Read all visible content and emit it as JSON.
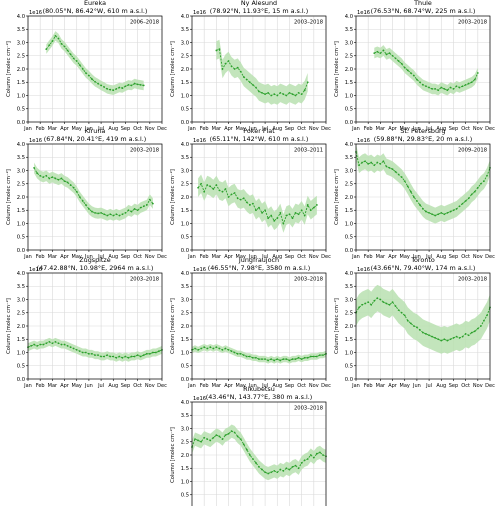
{
  "figure": {
    "ylabel": "Column [molec cm⁻²]",
    "multiplier": "1e16",
    "months": [
      "Jan",
      "Feb",
      "Mar",
      "Apr",
      "May",
      "Jun",
      "Jul",
      "Aug",
      "Sep",
      "Oct",
      "Nov",
      "Dec"
    ],
    "ytick_labels": [
      "0.0",
      "0.5",
      "1.0",
      "1.5",
      "2.0",
      "2.5",
      "3.0",
      "3.5",
      "4.0"
    ],
    "colors": {
      "line": "#2ca02c",
      "band": "#b8e0b0",
      "grid": "#d9d9d9",
      "axes": "#000000"
    }
  },
  "chart_data": [
    {
      "type": "line",
      "title": "Eureka",
      "subtitle": "(80.05°N, 86.42°W, 610 m a.s.l.)",
      "period": "2006–2018",
      "ylim": [
        0,
        4.0
      ],
      "y_multiplier": "1e16",
      "x": [
        2.5,
        2.75,
        3,
        3.25,
        3.5,
        3.75,
        4,
        4.25,
        4.5,
        4.75,
        5,
        5.25,
        5.5,
        5.75,
        6,
        6.25,
        6.5,
        6.75,
        7,
        7.25,
        7.5,
        7.75,
        8,
        8.25,
        8.5,
        8.75,
        9,
        9.25,
        9.5,
        9.75,
        10,
        10.25,
        10.5
      ],
      "y": [
        2.75,
        2.9,
        3.05,
        3.25,
        3.15,
        2.95,
        2.85,
        2.7,
        2.55,
        2.4,
        2.3,
        2.15,
        2.0,
        1.85,
        1.75,
        1.62,
        1.52,
        1.45,
        1.38,
        1.32,
        1.25,
        1.22,
        1.2,
        1.25,
        1.3,
        1.28,
        1.35,
        1.4,
        1.38,
        1.45,
        1.42,
        1.4,
        1.38
      ],
      "spread": 0.18
    },
    {
      "type": "line",
      "title": "Ny Alesund",
      "subtitle": "(78.92°N, 11.93°E, 15 m a.s.l.)",
      "period": "2003–2018",
      "ylim": [
        0,
        4.0
      ],
      "y_multiplier": "1e16",
      "x": [
        3.0,
        3.25,
        3.5,
        3.75,
        4,
        4.25,
        4.5,
        4.75,
        5,
        5.25,
        5.5,
        5.75,
        6,
        6.25,
        6.5,
        6.75,
        7,
        7.25,
        7.5,
        7.75,
        8,
        8.25,
        8.5,
        8.75,
        9,
        9.25,
        9.5,
        9.75,
        10,
        10.25,
        10.5
      ],
      "y": [
        2.7,
        2.75,
        2.0,
        2.2,
        2.3,
        2.1,
        2.0,
        2.05,
        1.9,
        1.7,
        1.6,
        1.5,
        1.4,
        1.3,
        1.15,
        1.1,
        1.05,
        1.1,
        1.0,
        1.05,
        1.0,
        1.1,
        1.05,
        1.0,
        1.1,
        1.05,
        1.0,
        1.1,
        1.05,
        1.2,
        1.5
      ],
      "spread": 0.35
    },
    {
      "type": "line",
      "title": "Thule",
      "subtitle": "(76.53°N, 68.74°W, 225 m a.s.l.)",
      "period": "2003–2018",
      "ylim": [
        0,
        4.0
      ],
      "y_multiplier": "1e16",
      "x": [
        2.5,
        2.75,
        3,
        3.25,
        3.5,
        3.75,
        4,
        4.25,
        4.5,
        4.75,
        5,
        5.25,
        5.5,
        5.75,
        6,
        6.25,
        6.5,
        6.75,
        7,
        7.25,
        7.5,
        7.75,
        8,
        8.25,
        8.5,
        8.75,
        9,
        9.25,
        9.5,
        9.75,
        10,
        10.25,
        10.5,
        10.75,
        11
      ],
      "y": [
        2.6,
        2.65,
        2.6,
        2.7,
        2.55,
        2.6,
        2.5,
        2.4,
        2.3,
        2.2,
        2.05,
        1.95,
        1.85,
        1.75,
        1.6,
        1.5,
        1.4,
        1.35,
        1.3,
        1.25,
        1.25,
        1.2,
        1.3,
        1.25,
        1.2,
        1.3,
        1.25,
        1.35,
        1.3,
        1.35,
        1.4,
        1.45,
        1.5,
        1.6,
        1.85
      ],
      "spread": 0.2
    },
    {
      "type": "line",
      "title": "Kiruna",
      "subtitle": "(67.84°N, 20.41°E, 419 m a.s.l.)",
      "period": "2003–2018",
      "ylim": [
        0,
        4.0
      ],
      "y_multiplier": "1e16",
      "x": [
        1.5,
        1.75,
        2,
        2.25,
        2.5,
        2.75,
        3,
        3.25,
        3.5,
        3.75,
        4,
        4.25,
        4.5,
        4.75,
        5,
        5.25,
        5.5,
        5.75,
        6,
        6.25,
        6.5,
        6.75,
        7,
        7.25,
        7.5,
        7.75,
        8,
        8.25,
        8.5,
        8.75,
        9,
        9.25,
        9.5,
        9.75,
        10,
        10.25,
        10.5,
        10.75,
        11,
        11.25
      ],
      "y": [
        3.1,
        2.9,
        2.8,
        2.75,
        2.8,
        2.7,
        2.75,
        2.7,
        2.65,
        2.7,
        2.6,
        2.55,
        2.45,
        2.35,
        2.2,
        2.0,
        1.85,
        1.7,
        1.55,
        1.45,
        1.4,
        1.38,
        1.4,
        1.35,
        1.3,
        1.35,
        1.3,
        1.35,
        1.3,
        1.35,
        1.4,
        1.5,
        1.45,
        1.55,
        1.5,
        1.6,
        1.65,
        1.7,
        1.9,
        1.75
      ],
      "spread": 0.2
    },
    {
      "type": "line",
      "title": "Poker Flat",
      "subtitle": "(65.11°N, 142°W, 610 m a.s.l.)",
      "period": "2003–2011",
      "ylim": [
        0,
        4.0
      ],
      "y_multiplier": "1e16",
      "x": [
        1.5,
        1.75,
        2,
        2.25,
        2.5,
        2.75,
        3,
        3.25,
        3.5,
        3.75,
        4,
        4.25,
        4.5,
        4.75,
        5,
        5.25,
        5.5,
        5.75,
        6,
        6.25,
        6.5,
        6.75,
        7,
        7.25,
        7.5,
        7.75,
        8,
        8.25,
        8.5,
        8.75,
        9,
        9.25,
        9.5,
        9.75,
        10,
        10.25,
        10.5,
        10.75,
        11,
        11.25
      ],
      "y": [
        2.35,
        2.5,
        2.2,
        2.45,
        2.4,
        2.3,
        2.45,
        2.25,
        2.2,
        2.3,
        2.0,
        2.1,
        2.15,
        1.95,
        1.9,
        1.95,
        1.8,
        1.7,
        1.75,
        1.5,
        1.6,
        1.4,
        1.5,
        1.2,
        1.3,
        1.1,
        1.2,
        1.4,
        1.0,
        1.3,
        1.35,
        1.2,
        1.4,
        1.35,
        1.5,
        1.3,
        1.7,
        1.5,
        1.6,
        1.7
      ],
      "spread": 0.35
    },
    {
      "type": "line",
      "title": "St. Petersburg",
      "subtitle": "(59.88°N, 29.83°E, 20 m a.s.l.)",
      "period": "2009–2018",
      "ylim": [
        0,
        4.0
      ],
      "y_multiplier": "1e16",
      "x": [
        1.0,
        1.25,
        1.5,
        1.75,
        2,
        2.25,
        2.5,
        2.75,
        3,
        3.25,
        3.5,
        3.75,
        4,
        4.25,
        4.5,
        4.75,
        5,
        5.25,
        5.5,
        5.75,
        6,
        6.25,
        6.5,
        6.75,
        7,
        7.25,
        7.5,
        7.75,
        8,
        8.25,
        8.5,
        8.75,
        9,
        9.25,
        9.5,
        9.75,
        10,
        10.25,
        10.5,
        10.75,
        11,
        11.25,
        11.5,
        11.75,
        12
      ],
      "y": [
        3.7,
        3.2,
        3.3,
        3.35,
        3.25,
        3.3,
        3.2,
        3.3,
        3.25,
        3.35,
        3.15,
        3.1,
        3.05,
        2.95,
        2.85,
        2.75,
        2.6,
        2.4,
        2.2,
        2.0,
        1.85,
        1.7,
        1.55,
        1.45,
        1.4,
        1.35,
        1.3,
        1.35,
        1.4,
        1.35,
        1.4,
        1.45,
        1.5,
        1.55,
        1.65,
        1.75,
        1.85,
        1.95,
        2.1,
        2.2,
        2.35,
        2.5,
        2.6,
        2.8,
        3.1
      ],
      "spread": 0.3
    },
    {
      "type": "line",
      "title": "Zugspitze",
      "subtitle": "(47.42.88°N, 10.98°E, 2964 m a.s.l.)",
      "period": "2003–2018",
      "ylim": [
        0,
        4.0
      ],
      "y_multiplier": "1e16",
      "x": [
        1.0,
        1.25,
        1.5,
        1.75,
        2,
        2.25,
        2.5,
        2.75,
        3,
        3.25,
        3.5,
        3.75,
        4,
        4.25,
        4.5,
        4.75,
        5,
        5.25,
        5.5,
        5.75,
        6,
        6.25,
        6.5,
        6.75,
        7,
        7.25,
        7.5,
        7.75,
        8,
        8.25,
        8.5,
        8.75,
        9,
        9.25,
        9.5,
        9.75,
        10,
        10.25,
        10.5,
        10.75,
        11,
        11.25,
        11.5,
        11.75,
        12
      ],
      "y": [
        1.2,
        1.25,
        1.3,
        1.25,
        1.3,
        1.3,
        1.35,
        1.4,
        1.35,
        1.4,
        1.35,
        1.3,
        1.3,
        1.25,
        1.2,
        1.15,
        1.1,
        1.05,
        1.0,
        1.0,
        0.95,
        0.95,
        0.9,
        0.9,
        0.85,
        0.85,
        0.9,
        0.85,
        0.85,
        0.8,
        0.85,
        0.8,
        0.85,
        0.8,
        0.85,
        0.85,
        0.9,
        0.85,
        0.9,
        0.95,
        0.95,
        1.0,
        1.0,
        1.05,
        1.1
      ],
      "spread": 0.15
    },
    {
      "type": "line",
      "title": "Jungfraujoch",
      "subtitle": "(46.55°N, 7.98°E, 3580 m a.s.l.)",
      "period": "2003–2018",
      "ylim": [
        0,
        4.0
      ],
      "y_multiplier": "1e16",
      "x": [
        1.0,
        1.25,
        1.5,
        1.75,
        2,
        2.25,
        2.5,
        2.75,
        3,
        3.25,
        3.5,
        3.75,
        4,
        4.25,
        4.5,
        4.75,
        5,
        5.25,
        5.5,
        5.75,
        6,
        6.25,
        6.5,
        6.75,
        7,
        7.25,
        7.5,
        7.75,
        8,
        8.25,
        8.5,
        8.75,
        9,
        9.25,
        9.5,
        9.75,
        10,
        10.25,
        10.5,
        10.75,
        11,
        11.25,
        11.5,
        11.75,
        12
      ],
      "y": [
        1.1,
        1.15,
        1.1,
        1.15,
        1.2,
        1.15,
        1.2,
        1.15,
        1.2,
        1.15,
        1.1,
        1.15,
        1.1,
        1.05,
        1.0,
        0.95,
        0.95,
        0.9,
        0.85,
        0.85,
        0.8,
        0.8,
        0.75,
        0.75,
        0.75,
        0.7,
        0.75,
        0.7,
        0.75,
        0.7,
        0.75,
        0.75,
        0.7,
        0.75,
        0.75,
        0.8,
        0.75,
        0.8,
        0.8,
        0.85,
        0.85,
        0.85,
        0.9,
        0.9,
        0.95
      ],
      "spread": 0.12
    },
    {
      "type": "line",
      "title": "Toronto",
      "subtitle": "(43.66°N, 79.40°W, 174 m a.s.l.)",
      "period": "2003–2018",
      "ylim": [
        0,
        4.0
      ],
      "y_multiplier": "1e16",
      "x": [
        1.0,
        1.25,
        1.5,
        1.75,
        2,
        2.25,
        2.5,
        2.75,
        3,
        3.25,
        3.5,
        3.75,
        4,
        4.25,
        4.5,
        4.75,
        5,
        5.25,
        5.5,
        5.75,
        6,
        6.25,
        6.5,
        6.75,
        7,
        7.25,
        7.5,
        7.75,
        8,
        8.25,
        8.5,
        8.75,
        9,
        9.25,
        9.5,
        9.75,
        10,
        10.25,
        10.5,
        10.75,
        11,
        11.25,
        11.5,
        11.75,
        12
      ],
      "y": [
        2.5,
        2.7,
        2.8,
        2.85,
        2.9,
        2.8,
        2.95,
        3.05,
        3.0,
        2.9,
        2.85,
        2.8,
        2.9,
        2.75,
        2.6,
        2.5,
        2.4,
        2.2,
        2.1,
        2.0,
        1.95,
        1.85,
        1.75,
        1.7,
        1.65,
        1.6,
        1.55,
        1.5,
        1.45,
        1.5,
        1.45,
        1.5,
        1.55,
        1.6,
        1.55,
        1.6,
        1.7,
        1.65,
        1.75,
        1.8,
        1.9,
        2.0,
        2.2,
        2.4,
        2.7
      ],
      "spread": 0.5
    },
    {
      "type": "line",
      "title": "Rikubetsu",
      "subtitle": "(43.46°N, 143.77°E, 380 m a.s.l.)",
      "period": "2003–2018",
      "ylim": [
        0,
        4.0
      ],
      "y_multiplier": "1e16",
      "x": [
        1.0,
        1.25,
        1.5,
        1.75,
        2,
        2.25,
        2.5,
        2.75,
        3,
        3.25,
        3.5,
        3.75,
        4,
        4.25,
        4.5,
        4.75,
        5,
        5.25,
        5.5,
        5.75,
        6,
        6.25,
        6.5,
        6.75,
        7,
        7.25,
        7.5,
        7.75,
        8,
        8.25,
        8.5,
        8.75,
        9,
        9.25,
        9.5,
        9.75,
        10,
        10.25,
        10.5,
        10.75,
        11,
        11.25,
        11.5,
        11.75,
        12
      ],
      "y": [
        2.3,
        2.6,
        2.55,
        2.5,
        2.65,
        2.6,
        2.55,
        2.65,
        2.75,
        2.7,
        2.6,
        2.75,
        2.8,
        2.9,
        2.85,
        2.7,
        2.6,
        2.4,
        2.2,
        2.0,
        1.85,
        1.7,
        1.55,
        1.45,
        1.35,
        1.3,
        1.35,
        1.4,
        1.35,
        1.45,
        1.4,
        1.5,
        1.45,
        1.55,
        1.6,
        1.5,
        1.7,
        1.8,
        1.85,
        2.0,
        1.9,
        2.05,
        2.1,
        2.0,
        1.95
      ],
      "spread": 0.25
    }
  ]
}
